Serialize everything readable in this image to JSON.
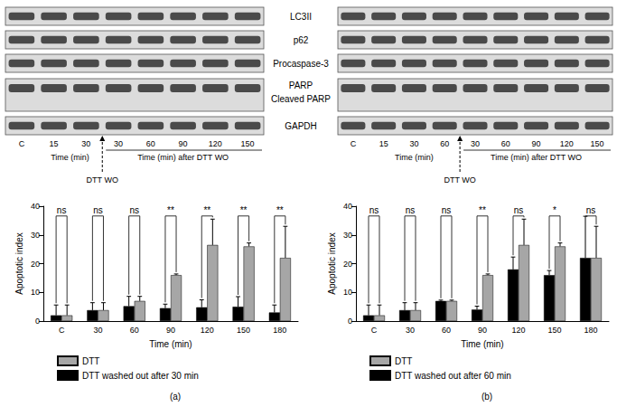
{
  "blots": {
    "proteins": [
      "LC3II",
      "p62",
      "Procaspase-3",
      "PARP",
      "Cleaved PARP",
      "GAPDH"
    ],
    "panels": [
      {
        "lanes": [
          "C",
          "15",
          "30",
          "30",
          "60",
          "90",
          "120",
          "150"
        ],
        "washout_after": 3,
        "time_label": "Time (min)",
        "after_label": "Time (min) after DTT WO",
        "washout_label": "DTT WO"
      },
      {
        "lanes": [
          "C",
          "15",
          "30",
          "60",
          "30",
          "60",
          "90",
          "120",
          "150"
        ],
        "washout_after": 4,
        "time_label": "Time (min)",
        "after_label": "Time (min) after DTT WO",
        "washout_label": "DTT WO"
      }
    ]
  },
  "chart_data": [
    {
      "type": "bar",
      "title": "(a)",
      "categories": [
        "C",
        "30",
        "60",
        "90",
        "120",
        "150",
        "180"
      ],
      "x_label": "Time (min)",
      "y_label": "Apoptotic index",
      "ylim": [
        0,
        40
      ],
      "yticks": [
        0,
        10,
        20,
        30,
        40
      ],
      "legend": "bottom",
      "series": [
        {
          "name": "DTT washed out after 30 min",
          "color": "#000000",
          "values": [
            2,
            3.8,
            5.2,
            4.5,
            4.8,
            5,
            3
          ],
          "errors": [
            3.6,
            2.6,
            3.4,
            1.4,
            2.6,
            3.5,
            2.6
          ]
        },
        {
          "name": "DTT",
          "color": "#a6a6a6",
          "values": [
            2,
            3.8,
            7,
            16,
            26.5,
            26,
            22
          ],
          "errors": [
            3.6,
            2.6,
            1.6,
            0.4,
            9,
            1.2,
            11
          ]
        }
      ],
      "significance": [
        "ns",
        "ns",
        "ns",
        "**",
        "**",
        "**",
        "**"
      ]
    },
    {
      "type": "bar",
      "title": "(b)",
      "categories": [
        "C",
        "30",
        "60",
        "90",
        "120",
        "150",
        "180"
      ],
      "x_label": "Time (min)",
      "y_label": "Apoptotic index",
      "ylim": [
        0,
        40
      ],
      "yticks": [
        0,
        10,
        20,
        30,
        40
      ],
      "legend": "bottom",
      "series": [
        {
          "name": "DTT washed out after 60 min",
          "color": "#000000",
          "values": [
            2,
            3.8,
            7,
            4,
            18,
            16,
            22
          ],
          "errors": [
            3.6,
            2.6,
            0.3,
            1.2,
            4.3,
            1.6,
            14.5
          ]
        },
        {
          "name": "DTT",
          "color": "#a6a6a6",
          "values": [
            2,
            3.8,
            7,
            16,
            26.5,
            26,
            22
          ],
          "errors": [
            3.6,
            2.6,
            0.3,
            0.4,
            9,
            1.2,
            11
          ]
        }
      ],
      "significance": [
        "ns",
        "ns",
        "ns",
        "**",
        "ns",
        "*",
        "ns"
      ]
    }
  ]
}
